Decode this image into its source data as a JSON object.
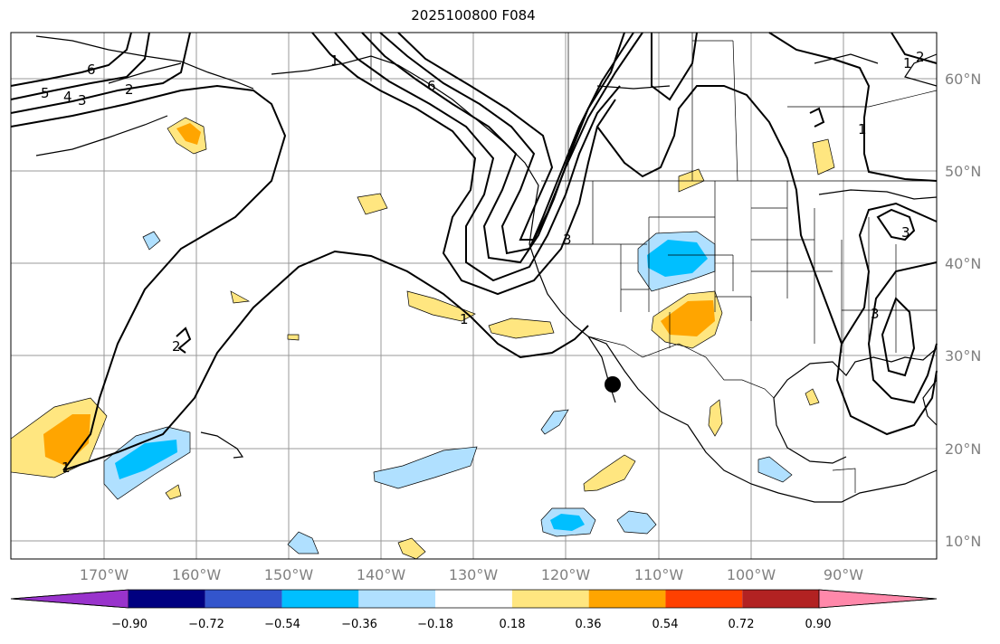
{
  "title": "2025100800 F084",
  "lat_labels": [
    "60°N",
    "50°N",
    "40°N",
    "30°N",
    "20°N",
    "10°N"
  ],
  "lon_labels": [
    "170°W",
    "160°W",
    "150°W",
    "140°W",
    "130°W",
    "120°W",
    "110°W",
    "100°W",
    "90°W"
  ],
  "contour_labels": [
    "5",
    "4",
    "3",
    "2",
    "6",
    "1",
    "1",
    "2",
    "1",
    "6",
    "3",
    "1",
    "1",
    "2",
    "3",
    "3"
  ],
  "colorbar": {
    "tick_labels": [
      "−0.90",
      "−0.72",
      "−0.54",
      "−0.36",
      "−0.18",
      "0.18",
      "0.36",
      "0.54",
      "0.72",
      "0.90"
    ],
    "colors": [
      "#9933cc",
      "#000080",
      "#3355cc",
      "#00bfff",
      "#b0e0ff",
      "#ffffff",
      "#ffe680",
      "#ffa500",
      "#ff4000",
      "#b22222",
      "#ff88aa"
    ]
  },
  "marker": "storm-dot"
}
